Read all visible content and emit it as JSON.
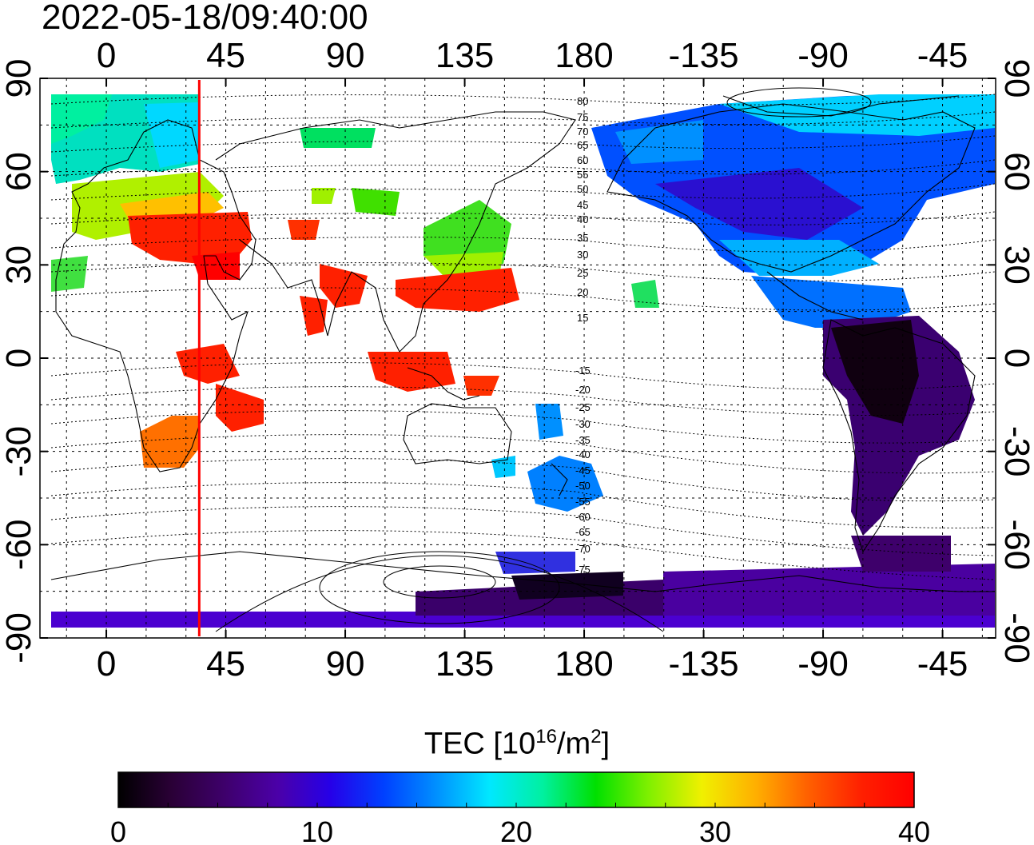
{
  "title": "2022-05-18/09:40:00",
  "map": {
    "top_lon_labels": [
      "0",
      "45",
      "90",
      "135",
      "180",
      "-135",
      "-90",
      "-45"
    ],
    "bottom_lon_labels": [
      "0",
      "45",
      "90",
      "135",
      "180",
      "-135",
      "-90",
      "-45"
    ],
    "left_lat_labels": [
      "90",
      "60",
      "30",
      "0",
      "-30",
      "-60",
      "-90"
    ],
    "right_lat_labels": [
      "90",
      "60",
      "30",
      "0",
      "-30",
      "-60",
      "-90"
    ],
    "lon_ticks": [
      0,
      45,
      90,
      135,
      180,
      225,
      270,
      315
    ],
    "lat_ticks": [
      90,
      60,
      30,
      0,
      -30,
      -60,
      -90
    ],
    "lon_range": [
      -25,
      335
    ],
    "lat_range": [
      -90,
      90
    ],
    "grid": "on",
    "marker_longitude": 35,
    "marker_color": "#ff0000",
    "contour_labels_north": [
      "80",
      "75",
      "70",
      "65",
      "60",
      "55",
      "50",
      "45",
      "40",
      "35",
      "30",
      "25",
      "20",
      "15"
    ],
    "contour_labels_south": [
      "-15",
      "-20",
      "-25",
      "-30",
      "-35",
      "-40",
      "-45",
      "-50",
      "-55",
      "-60",
      "-65",
      "-70",
      "-75"
    ]
  },
  "colorbar": {
    "label_text": "TEC  [10",
    "label_sup1": "16",
    "label_mid": "/m",
    "label_sup2": "2",
    "label_end": "]",
    "min": 0,
    "max": 40,
    "tick_values": [
      "0",
      "10",
      "20",
      "30",
      "40"
    ],
    "colormap": [
      "#000000",
      "#2a0036",
      "#3e006b",
      "#4b00a8",
      "#2600e8",
      "#0040ff",
      "#0090ff",
      "#00e8ff",
      "#00f0a0",
      "#00e000",
      "#80f000",
      "#f0f000",
      "#ffb000",
      "#ff6000",
      "#ff2000",
      "#ff0000"
    ]
  }
}
